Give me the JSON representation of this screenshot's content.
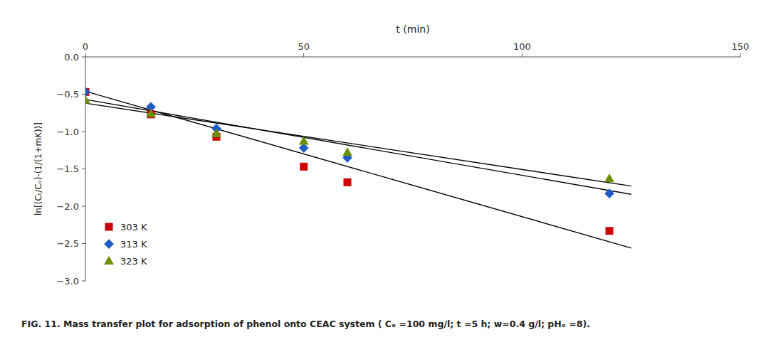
{
  "chart_data": {
    "type": "scatter",
    "caption": "FIG. 11. Mass transfer plot for adsorption of phenol onto CEAC system ( Cₒ =100 mg/l;  t =5 h;  w=0.4 g/l;  pHₒ =8).",
    "x_label": "t (min)",
    "y_label": "ln[(Cₜ/Cₒ)-(1/(1+mK))]",
    "xlim": [
      0,
      150
    ],
    "ylim": [
      -3,
      0
    ],
    "xticks": [
      0,
      50,
      100,
      150
    ],
    "yticks": [
      {
        "value": 0,
        "label": "0.0"
      },
      {
        "value": -0.5,
        "label": "−0.5"
      },
      {
        "value": -1,
        "label": "−1.0"
      },
      {
        "value": -1.5,
        "label": "−1.5"
      },
      {
        "value": -2,
        "label": "−2.0"
      },
      {
        "value": -2.5,
        "label": "−2.5"
      },
      {
        "value": -3,
        "label": "−3.0"
      }
    ],
    "grid": false,
    "legend": "lower left",
    "series": [
      {
        "name": "303 K",
        "type": "scatter",
        "color": "#cc0000",
        "marker": "square",
        "x": [
          0,
          15,
          30,
          50,
          60,
          120
        ],
        "values": [
          -0.47,
          -0.77,
          -1.07,
          -1.47,
          -1.68,
          -2.33
        ]
      },
      {
        "name": "313 K",
        "type": "scatter",
        "color": "#1f5bc4",
        "marker": "diamond",
        "x": [
          0,
          15,
          30,
          50,
          60,
          120
        ],
        "values": [
          -0.47,
          -0.67,
          -0.96,
          -1.22,
          -1.35,
          -1.83
        ]
      },
      {
        "name": "323 K",
        "type": "scatter",
        "color": "#6a8f00",
        "marker": "triangle",
        "x": [
          0,
          15,
          30,
          50,
          60,
          120
        ],
        "values": [
          -0.58,
          -0.76,
          -1.03,
          -1.13,
          -1.28,
          -1.63
        ]
      },
      {
        "type": "line",
        "color": "#000000",
        "x": [
          0,
          125
        ],
        "values": [
          -0.46,
          -2.56
        ]
      },
      {
        "type": "line",
        "color": "#000000",
        "x": [
          0,
          125
        ],
        "values": [
          -0.57,
          -1.84
        ]
      },
      {
        "type": "line",
        "color": "#000000",
        "x": [
          0,
          125
        ],
        "values": [
          -0.62,
          -1.73
        ]
      }
    ]
  }
}
